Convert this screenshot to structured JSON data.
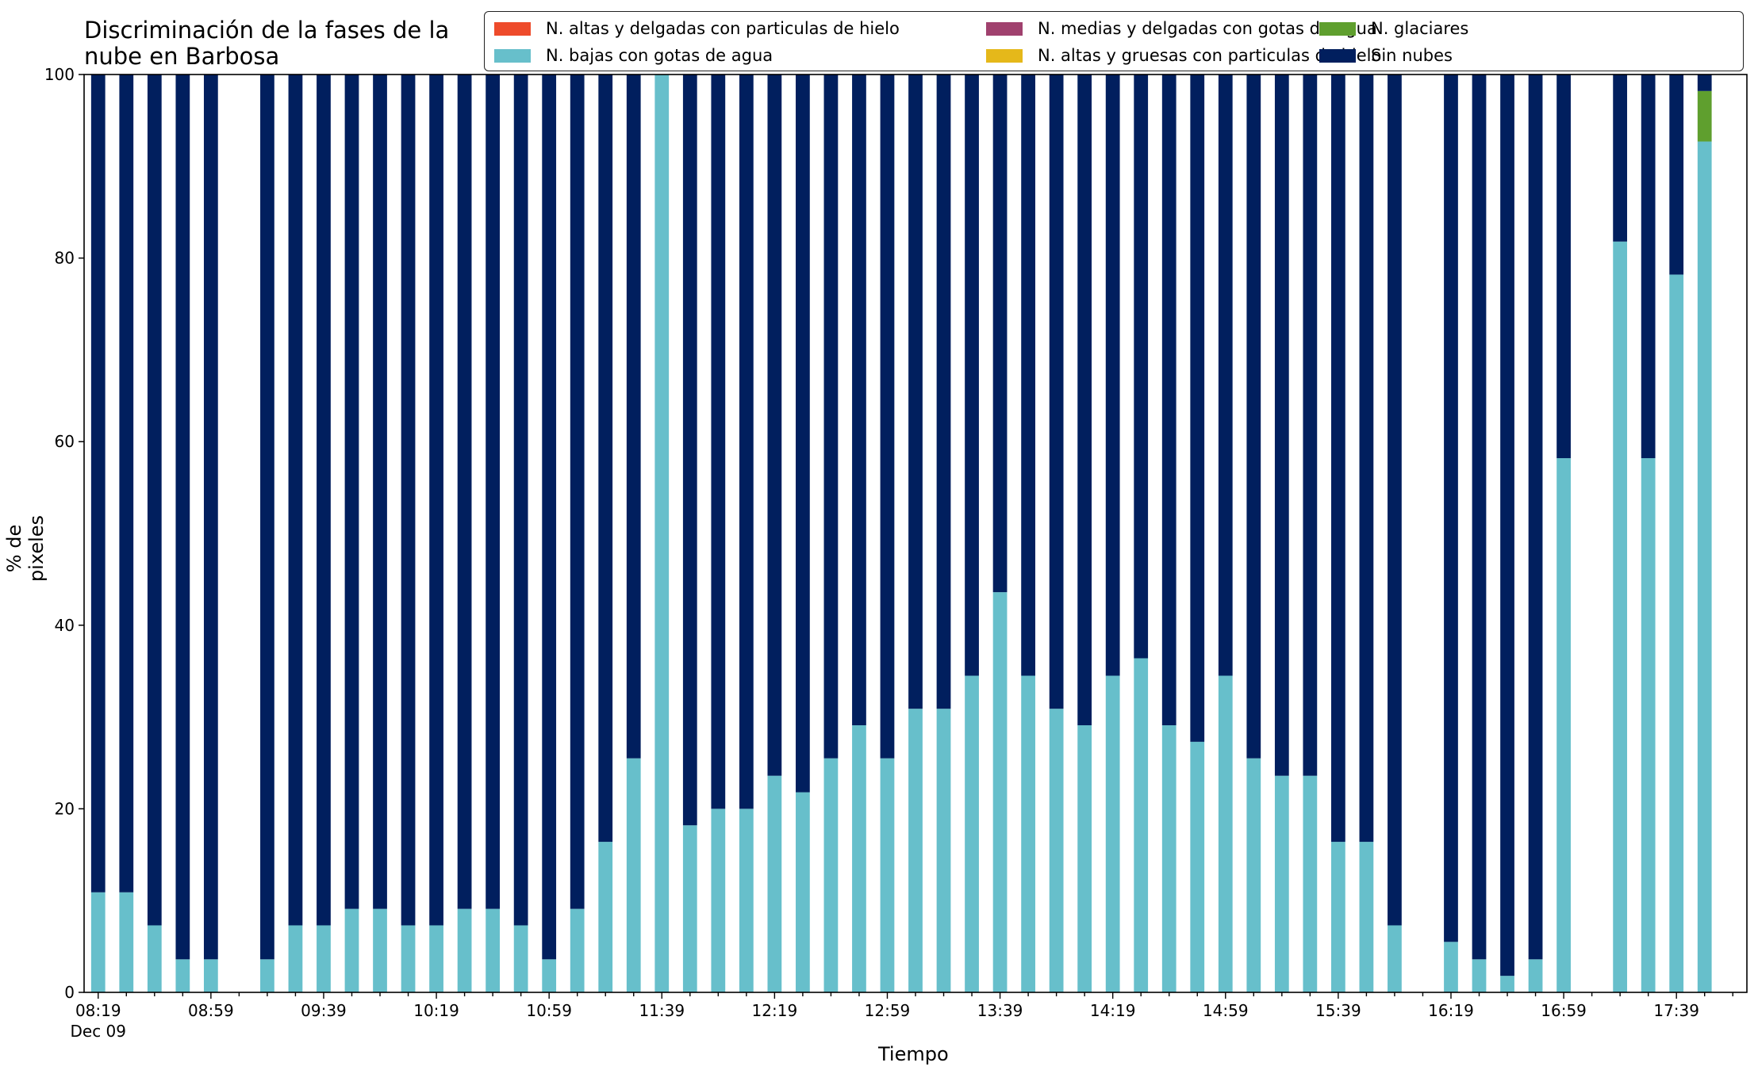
{
  "chart_data": {
    "type": "bar",
    "stacked": true,
    "title": "Discriminación de la fases de la nube en Barbosa",
    "title_lines": [
      "Discriminación de la fases de la",
      "nube en Barbosa"
    ],
    "xlabel": "Tiempo",
    "ylabel": "% de pixeles",
    "ylim": [
      0,
      100
    ],
    "yticks": [
      "0",
      "20",
      "40",
      "60",
      "80",
      "100"
    ],
    "xticks": [
      "08:19",
      "08:59",
      "09:39",
      "10:19",
      "10:59",
      "11:39",
      "12:19",
      "12:59",
      "13:39",
      "14:19",
      "14:59",
      "15:39",
      "16:19",
      "16:59",
      "17:39"
    ],
    "xtick_sublabel": "Dec 09",
    "legend_position": "top-right",
    "slots": 59,
    "series": [
      {
        "name": "N. altas y delgadas con particulas de hielo",
        "color": "#ee4b2b",
        "values": [
          0,
          0,
          0,
          0,
          0,
          null,
          0,
          0,
          0,
          0,
          0,
          0,
          0,
          0,
          0,
          0,
          0,
          0,
          0,
          0,
          0,
          0,
          0,
          0,
          0,
          0,
          0,
          0,
          0,
          0,
          0,
          0,
          0,
          0,
          0,
          0,
          0,
          0,
          0,
          0,
          0,
          0,
          0,
          0,
          0,
          0,
          0,
          0,
          0,
          null,
          0,
          0,
          0,
          0,
          0,
          null,
          0,
          0,
          0
        ]
      },
      {
        "name": "N. altas y gruesas con particulas de hielo",
        "color": "#e5b81a",
        "values": [
          0,
          0,
          0,
          0,
          0,
          null,
          0,
          0,
          0,
          0,
          0,
          0,
          0,
          0,
          0,
          0,
          0,
          0,
          0,
          0,
          0,
          0,
          0,
          0,
          0,
          0,
          0,
          0,
          0,
          0,
          0,
          0,
          0,
          0,
          0,
          0,
          0,
          0,
          0,
          0,
          0,
          0,
          0,
          0,
          0,
          0,
          0,
          0,
          0,
          null,
          0,
          0,
          0,
          0,
          0,
          null,
          0,
          0,
          0
        ]
      },
      {
        "name": "N. bajas con gotas de agua",
        "color": "#67bfcb",
        "values": [
          10.9,
          10.9,
          7.3,
          3.6,
          3.6,
          null,
          3.6,
          7.3,
          7.3,
          9.1,
          9.1,
          7.3,
          7.3,
          9.1,
          9.1,
          7.3,
          3.6,
          9.1,
          16.4,
          25.5,
          100,
          18.2,
          20.0,
          20.0,
          23.6,
          21.8,
          25.5,
          29.1,
          25.5,
          30.9,
          30.9,
          34.5,
          43.6,
          34.5,
          30.9,
          29.1,
          34.5,
          36.4,
          29.1,
          27.3,
          34.5,
          25.5,
          23.6,
          23.6,
          16.4,
          16.4,
          7.3,
          null,
          5.5,
          3.6,
          1.8,
          3.6,
          58.2,
          null,
          81.8,
          58.2,
          78.2,
          92.7,
          0
        ]
      },
      {
        "name": "N. glaciares",
        "color": "#5f9f2e",
        "values": [
          0,
          0,
          0,
          0,
          0,
          null,
          0,
          0,
          0,
          0,
          0,
          0,
          0,
          0,
          0,
          0,
          0,
          0,
          0,
          0,
          0,
          0,
          0,
          0,
          0,
          0,
          0,
          0,
          0,
          0,
          0,
          0,
          0,
          0,
          0,
          0,
          0,
          0,
          0,
          0,
          0,
          0,
          0,
          0,
          0,
          0,
          0,
          null,
          0,
          0,
          0,
          0,
          0,
          null,
          0,
          0,
          0,
          5.5,
          0
        ]
      },
      {
        "name": "N. medias y delgadas con gotas de agua",
        "color": "#a0416e",
        "values": [
          0,
          0,
          0,
          0,
          0,
          null,
          0,
          0,
          0,
          0,
          0,
          0,
          0,
          0,
          0,
          0,
          0,
          0,
          0,
          0,
          0,
          0,
          0,
          0,
          0,
          0,
          0,
          0,
          0,
          0,
          0,
          0,
          0,
          0,
          0,
          0,
          0,
          0,
          0,
          0,
          0,
          0,
          0,
          0,
          0,
          0,
          0,
          null,
          0,
          0,
          0,
          0,
          0,
          null,
          0,
          0,
          0,
          0,
          0
        ]
      },
      {
        "name": "Sin nubes",
        "color": "#011f5e",
        "values": [
          89.1,
          89.1,
          92.7,
          96.4,
          96.4,
          null,
          96.4,
          92.7,
          92.7,
          90.9,
          90.9,
          92.7,
          92.7,
          90.9,
          90.9,
          92.7,
          96.4,
          90.9,
          83.6,
          74.5,
          0,
          81.8,
          80.0,
          80.0,
          76.4,
          78.2,
          74.5,
          70.9,
          74.5,
          69.1,
          69.1,
          65.5,
          56.4,
          65.5,
          69.1,
          70.9,
          65.5,
          63.6,
          70.9,
          72.7,
          65.5,
          74.5,
          76.4,
          76.4,
          83.6,
          83.6,
          92.7,
          null,
          94.5,
          96.4,
          98.2,
          96.4,
          41.8,
          null,
          18.2,
          41.8,
          21.8,
          1.8,
          0
        ]
      }
    ],
    "legend_order": [
      0,
      2,
      4,
      1,
      3,
      5
    ]
  }
}
